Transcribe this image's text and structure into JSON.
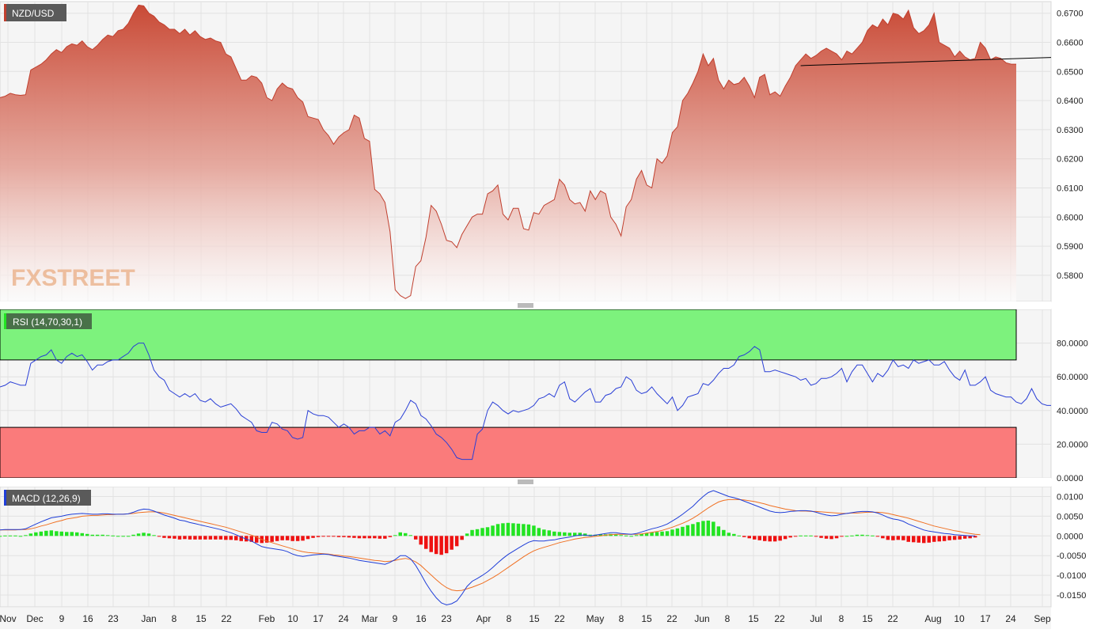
{
  "chart_data": [
    {
      "type": "area",
      "label": "NZD/USD",
      "y_ticks": [
        "0.6700",
        "0.6600",
        "0.6500",
        "0.6400",
        "0.6300",
        "0.6200",
        "0.6100",
        "0.6000",
        "0.5900",
        "0.5800"
      ],
      "ylim": [
        0.571,
        0.674
      ],
      "trendline": [
        [
          0.652,
          0.6548
        ]
      ],
      "watermark": "FXSTREET",
      "series": [
        {
          "values": [
            0.641,
            0.6415,
            0.6425,
            0.642,
            0.6418,
            0.642,
            0.6505,
            0.6515,
            0.6525,
            0.654,
            0.656,
            0.6575,
            0.6565,
            0.6585,
            0.6595,
            0.659,
            0.6605,
            0.6585,
            0.6575,
            0.659,
            0.661,
            0.6625,
            0.662,
            0.664,
            0.6645,
            0.6665,
            0.67,
            0.6728,
            0.6725,
            0.67,
            0.669,
            0.667,
            0.666,
            0.6645,
            0.6645,
            0.663,
            0.6645,
            0.6625,
            0.664,
            0.662,
            0.661,
            0.6615,
            0.6605,
            0.66,
            0.656,
            0.655,
            0.651,
            0.647,
            0.647,
            0.6485,
            0.648,
            0.646,
            0.641,
            0.64,
            0.644,
            0.646,
            0.6445,
            0.644,
            0.641,
            0.6395,
            0.6345,
            0.634,
            0.6335,
            0.63,
            0.628,
            0.625,
            0.6275,
            0.629,
            0.63,
            0.635,
            0.634,
            0.627,
            0.626,
            0.6095,
            0.608,
            0.605,
            0.595,
            0.575,
            0.573,
            0.572,
            0.573,
            0.583,
            0.585,
            0.593,
            0.604,
            0.602,
            0.5975,
            0.592,
            0.5915,
            0.5895,
            0.594,
            0.597,
            0.6,
            0.601,
            0.601,
            0.608,
            0.609,
            0.611,
            0.601,
            0.599,
            0.603,
            0.603,
            0.596,
            0.5955,
            0.6015,
            0.601,
            0.604,
            0.605,
            0.606,
            0.613,
            0.611,
            0.606,
            0.6045,
            0.605,
            0.602,
            0.609,
            0.606,
            0.609,
            0.608,
            0.6,
            0.5975,
            0.5935,
            0.6035,
            0.606,
            0.613,
            0.616,
            0.611,
            0.61,
            0.62,
            0.6185,
            0.621,
            0.629,
            0.631,
            0.64,
            0.6425,
            0.646,
            0.65,
            0.656,
            0.652,
            0.6545,
            0.647,
            0.644,
            0.647,
            0.6455,
            0.646,
            0.648,
            0.645,
            0.641,
            0.648,
            0.649,
            0.642,
            0.643,
            0.6415,
            0.645,
            0.648,
            0.652,
            0.654,
            0.656,
            0.6545,
            0.6555,
            0.657,
            0.658,
            0.657,
            0.656,
            0.654,
            0.657,
            0.656,
            0.658,
            0.66,
            0.664,
            0.666,
            0.665,
            0.668,
            0.666,
            0.67,
            0.6695,
            0.668,
            0.671,
            0.665,
            0.663,
            0.664,
            0.666,
            0.67,
            0.66,
            0.659,
            0.658,
            0.655,
            0.657,
            0.655,
            0.654,
            0.6545,
            0.66,
            0.658,
            0.654,
            0.655,
            0.6545,
            0.653,
            0.6525,
            0.6525
          ]
        }
      ]
    },
    {
      "type": "line",
      "label": "RSI (14,70,30,1)",
      "y_ticks": [
        "80.0000",
        "60.0000",
        "40.0000",
        "20.0000",
        "0.0000"
      ],
      "ylim": [
        0,
        100
      ],
      "overbought": 70,
      "oversold": 30,
      "series": [
        {
          "values": [
            54,
            55,
            57,
            56,
            55,
            55,
            68,
            70,
            72,
            73,
            76,
            70,
            68,
            72,
            74,
            72,
            73,
            69,
            64,
            67,
            67,
            69,
            70,
            70,
            72,
            74,
            78,
            80,
            80,
            73,
            64,
            60,
            58,
            52,
            50,
            48,
            50,
            48,
            50,
            46,
            45,
            47,
            44,
            42,
            43,
            44,
            41,
            37,
            35,
            33,
            28,
            27,
            27,
            33,
            32,
            29,
            28,
            24,
            23,
            24,
            40,
            38,
            37,
            37,
            36,
            33,
            30,
            32,
            30,
            26,
            28,
            28,
            30,
            30,
            26,
            28,
            25,
            33,
            35,
            40,
            46,
            44,
            37,
            35,
            31,
            26,
            24,
            21,
            17,
            12,
            11,
            11,
            11,
            26,
            29,
            40,
            45,
            43,
            40,
            38,
            40,
            39,
            40,
            41,
            43,
            47,
            48,
            50,
            48,
            55,
            57,
            47,
            45,
            48,
            51,
            53,
            45,
            45,
            49,
            50,
            53,
            54,
            60,
            58,
            52,
            50,
            51,
            54,
            50,
            47,
            44,
            48,
            40,
            43,
            48,
            49,
            50,
            56,
            55,
            58,
            62,
            65,
            65,
            67,
            72,
            73,
            75,
            78,
            76,
            63,
            63,
            64,
            63,
            62,
            61,
            60,
            58,
            59,
            55,
            56,
            59,
            59,
            60,
            62,
            65,
            57,
            63,
            67,
            67,
            62,
            57,
            62,
            60,
            64,
            70,
            66,
            67,
            65,
            70,
            68,
            69,
            70,
            67,
            67,
            69,
            64,
            60,
            58,
            64,
            55,
            55,
            57,
            60,
            52,
            50,
            49,
            48,
            48,
            45,
            44,
            47,
            53,
            47,
            44,
            43,
            43
          ]
        }
      ]
    },
    {
      "type": "bar",
      "label": "MACD (12,26,9)",
      "y_ticks": [
        "0.0100",
        "0.0050",
        "0.0000",
        "-0.0050",
        "-0.0100",
        "-0.0150"
      ],
      "ylim": [
        -0.018,
        0.0125
      ],
      "series": [
        {
          "name": "MACD",
          "values": [
            0.0015,
            0.0016,
            0.0016,
            0.0016,
            0.0016,
            0.0018,
            0.0024,
            0.003,
            0.0036,
            0.0041,
            0.0046,
            0.0048,
            0.005,
            0.0053,
            0.0055,
            0.0056,
            0.0057,
            0.0056,
            0.0055,
            0.0055,
            0.0056,
            0.0056,
            0.0055,
            0.0055,
            0.0055,
            0.0056,
            0.006,
            0.0065,
            0.0068,
            0.0067,
            0.0063,
            0.0058,
            0.0053,
            0.0049,
            0.0045,
            0.004,
            0.0038,
            0.0034,
            0.0031,
            0.0028,
            0.0025,
            0.0022,
            0.0019,
            0.0016,
            0.0012,
            0.0008,
            0.0003,
            -0.0003,
            -0.0008,
            -0.0013,
            -0.002,
            -0.0027,
            -0.003,
            -0.0032,
            -0.0034,
            -0.0036,
            -0.004,
            -0.0046,
            -0.005,
            -0.0052,
            -0.005,
            -0.0048,
            -0.0047,
            -0.0046,
            -0.0047,
            -0.005,
            -0.0052,
            -0.0054,
            -0.0056,
            -0.0059,
            -0.0062,
            -0.0064,
            -0.0066,
            -0.0068,
            -0.007,
            -0.0072,
            -0.0067,
            -0.006,
            -0.005,
            -0.005,
            -0.0058,
            -0.0075,
            -0.0097,
            -0.012,
            -0.014,
            -0.0157,
            -0.017,
            -0.0175,
            -0.0172,
            -0.0165,
            -0.0148,
            -0.0128,
            -0.0115,
            -0.0108,
            -0.01,
            -0.0091,
            -0.008,
            -0.0068,
            -0.0057,
            -0.0047,
            -0.0039,
            -0.0031,
            -0.0023,
            -0.0016,
            -0.0012,
            -0.0013,
            -0.0013,
            -0.0011,
            -0.001,
            -0.0007,
            -0.0005,
            -0.0003,
            0.0,
            0.0002,
            0.0002,
            0.0,
            0.0002,
            0.0004,
            0.0006,
            0.0008,
            0.0008,
            0.0006,
            0.0005,
            0.0004,
            0.0006,
            0.001,
            0.0014,
            0.0018,
            0.0021,
            0.0025,
            0.003,
            0.0038,
            0.0046,
            0.0055,
            0.0065,
            0.0075,
            0.0088,
            0.01,
            0.011,
            0.0115,
            0.011,
            0.0105,
            0.01,
            0.0097,
            0.0093,
            0.0088,
            0.0083,
            0.0078,
            0.0073,
            0.0068,
            0.0063,
            0.006,
            0.0059,
            0.006,
            0.0062,
            0.0063,
            0.0064,
            0.0064,
            0.0063,
            0.006,
            0.0056,
            0.0053,
            0.0051,
            0.0052,
            0.0055,
            0.0057,
            0.0059,
            0.0061,
            0.0062,
            0.0062,
            0.0061,
            0.0058,
            0.0053,
            0.0047,
            0.0043,
            0.0041,
            0.0037,
            0.003,
            0.0025,
            0.002,
            0.0015,
            0.0012,
            0.001,
            0.0008,
            0.0006,
            0.0005,
            0.0003,
            0.0002,
            0.0001,
            0.0,
            0.0
          ]
        },
        {
          "name": "Signal",
          "values": [
            0.0015,
            0.0015,
            0.0015,
            0.0015,
            0.0016,
            0.0016,
            0.0018,
            0.0021,
            0.0025,
            0.0028,
            0.0032,
            0.0036,
            0.0039,
            0.0043,
            0.0045,
            0.0047,
            0.005,
            0.0051,
            0.0052,
            0.0052,
            0.0053,
            0.0054,
            0.0054,
            0.0055,
            0.0055,
            0.0056,
            0.0057,
            0.0059,
            0.006,
            0.0061,
            0.0061,
            0.006,
            0.0058,
            0.0055,
            0.0052,
            0.0049,
            0.0046,
            0.0043,
            0.004,
            0.0037,
            0.0034,
            0.0031,
            0.0028,
            0.0025,
            0.0022,
            0.0018,
            0.0014,
            0.001,
            0.0006,
            0.0002,
            -0.0003,
            -0.0009,
            -0.0013,
            -0.0017,
            -0.0021,
            -0.0025,
            -0.0029,
            -0.0033,
            -0.0037,
            -0.004,
            -0.0042,
            -0.0043,
            -0.0044,
            -0.0045,
            -0.0046,
            -0.0048,
            -0.0049,
            -0.0051,
            -0.0052,
            -0.0054,
            -0.0056,
            -0.0058,
            -0.006,
            -0.0062,
            -0.0063,
            -0.0065,
            -0.0064,
            -0.0062,
            -0.0059,
            -0.0057,
            -0.006,
            -0.0066,
            -0.0075,
            -0.0087,
            -0.0099,
            -0.0111,
            -0.0122,
            -0.0131,
            -0.0137,
            -0.0139,
            -0.0138,
            -0.0134,
            -0.013,
            -0.0125,
            -0.012,
            -0.0113,
            -0.0106,
            -0.0098,
            -0.0089,
            -0.008,
            -0.0071,
            -0.0062,
            -0.0053,
            -0.0045,
            -0.0038,
            -0.0033,
            -0.0029,
            -0.0025,
            -0.0021,
            -0.0017,
            -0.0014,
            -0.0011,
            -0.0008,
            -0.0006,
            -0.0004,
            -0.0003,
            -0.0001,
            0.0,
            0.0002,
            0.0003,
            0.0004,
            0.0004,
            0.0004,
            0.0004,
            0.0004,
            0.0005,
            0.0007,
            0.0009,
            0.0011,
            0.0014,
            0.0018,
            0.0022,
            0.0027,
            0.0032,
            0.0038,
            0.0045,
            0.0053,
            0.0062,
            0.0071,
            0.0079,
            0.0086,
            0.009,
            0.0092,
            0.0092,
            0.0092,
            0.0091,
            0.0089,
            0.0087,
            0.0084,
            0.0081,
            0.0077,
            0.0074,
            0.0071,
            0.0068,
            0.0066,
            0.0064,
            0.0063,
            0.0063,
            0.0062,
            0.0062,
            0.0061,
            0.006,
            0.0059,
            0.0058,
            0.0057,
            0.0057,
            0.0058,
            0.0058,
            0.0059,
            0.006,
            0.006,
            0.006,
            0.0059,
            0.0057,
            0.0054,
            0.0051,
            0.0048,
            0.0045,
            0.0041,
            0.0037,
            0.0033,
            0.0029,
            0.0025,
            0.0022,
            0.0019,
            0.0016,
            0.0013,
            0.0011,
            0.0008,
            0.0006,
            0.0004,
            0.0003
          ]
        }
      ]
    }
  ],
  "x_axis_labels": [
    "Nov",
    "Dec",
    "9",
    "16",
    "23",
    "Jan",
    "8",
    "15",
    "22",
    "Feb",
    "10",
    "17",
    "24",
    "Mar",
    "9",
    "16",
    "23",
    "Apr",
    "8",
    "15",
    "22",
    "May",
    "8",
    "15",
    "22",
    "Jun",
    "8",
    "15",
    "22",
    "Jul",
    "8",
    "15",
    "22",
    "Aug",
    "10",
    "17",
    "24",
    "Sep"
  ],
  "colors": {
    "price_line": "#c03f2e",
    "rsi_line": "#2a3fd6",
    "macd_line": "#1f3ed8",
    "signal_line": "#f07022",
    "hist_pos": "#22e322",
    "hist_neg": "#ee1111",
    "overbought_zone": "#7df27d",
    "oversold_zone": "#fa7b7b",
    "label_bg": "#5a5a5a"
  }
}
